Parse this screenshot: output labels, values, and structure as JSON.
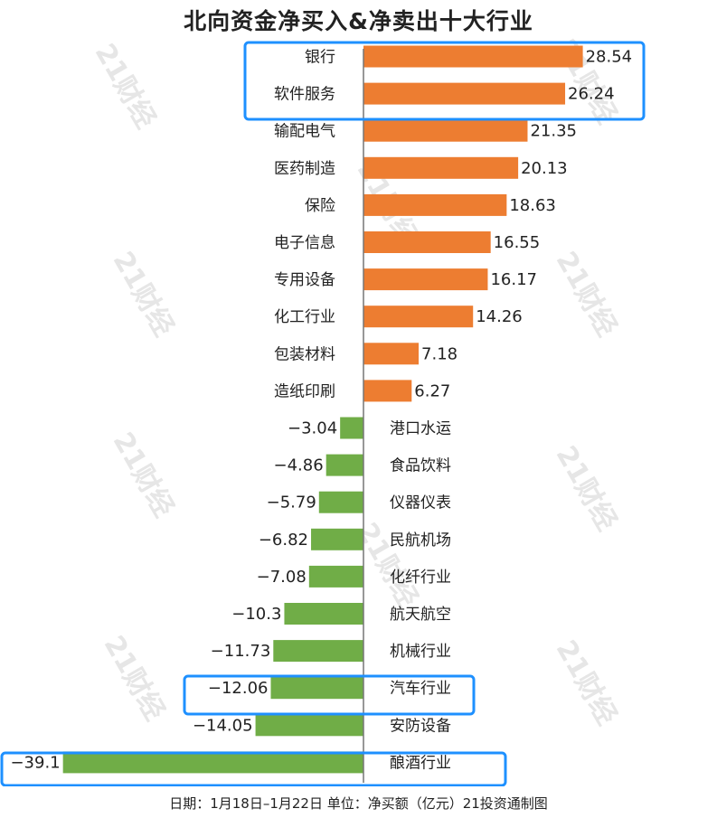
{
  "title": "北向资金净买入&净卖出十大行业",
  "footer": "日期：1月18日–1月22日 单位：净买额（亿元）21投资通制图",
  "watermark": "21财经",
  "colors": {
    "positive": "#ed7d31",
    "negative": "#70ad47",
    "highlight": "#1e90ff"
  },
  "chart_data": {
    "type": "bar",
    "orientation": "horizontal",
    "categories": [
      "银行",
      "软件服务",
      "输配电气",
      "医药制造",
      "保险",
      "电子信息",
      "专用设备",
      "化工行业",
      "包装材料",
      "造纸印刷",
      "港口水运",
      "食品饮料",
      "仪器仪表",
      "民航机场",
      "化纤行业",
      "航天航空",
      "机械行业",
      "汽车行业",
      "安防设备",
      "酿酒行业"
    ],
    "values": [
      28.54,
      26.24,
      21.35,
      20.13,
      18.63,
      16.55,
      16.17,
      14.26,
      7.18,
      6.27,
      -3.04,
      -4.86,
      -5.79,
      -6.82,
      -7.08,
      -10.3,
      -11.73,
      -12.06,
      -14.05,
      -39.1
    ],
    "value_labels": [
      "28.54",
      "26.24",
      "21.35",
      "20.13",
      "18.63",
      "16.55",
      "16.17",
      "14.26",
      "7.18",
      "6.27",
      "−3.04",
      "−4.86",
      "−5.79",
      "−6.82",
      "−7.08",
      "−10.3",
      "−11.73",
      "−12.06",
      "−14.05",
      "−39.1"
    ],
    "highlighted": [
      "银行",
      "软件服务",
      "汽车行业",
      "酿酒行业"
    ]
  }
}
